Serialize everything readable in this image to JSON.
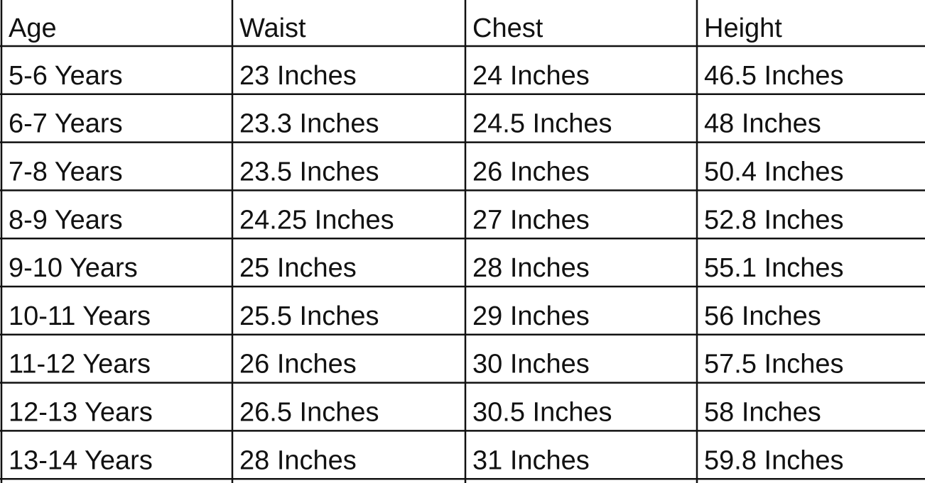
{
  "table": {
    "header": [
      "Age",
      "Waist",
      "Chest",
      "Height"
    ],
    "rows": [
      [
        "5-6 Years",
        "23 Inches",
        "24 Inches",
        "46.5 Inches"
      ],
      [
        "6-7 Years",
        "23.3 Inches",
        "24.5 Inches",
        "48 Inches"
      ],
      [
        "7-8 Years",
        "23.5 Inches",
        "26 Inches",
        "50.4 Inches"
      ],
      [
        "8-9 Years",
        "24.25 Inches",
        "27 Inches",
        "52.8 Inches"
      ],
      [
        "9-10 Years",
        "25 Inches",
        "28 Inches",
        "55.1 Inches"
      ],
      [
        "10-11 Years",
        "25.5 Inches",
        "29 Inches",
        "56 Inches"
      ],
      [
        "11-12 Years",
        "26 Inches",
        "30 Inches",
        "57.5 Inches"
      ],
      [
        "12-13 Years",
        "26.5 Inches",
        "30.5 Inches",
        "58 Inches"
      ],
      [
        "13-14 Years",
        "28 Inches",
        "31 Inches",
        "59.8 Inches"
      ]
    ]
  }
}
